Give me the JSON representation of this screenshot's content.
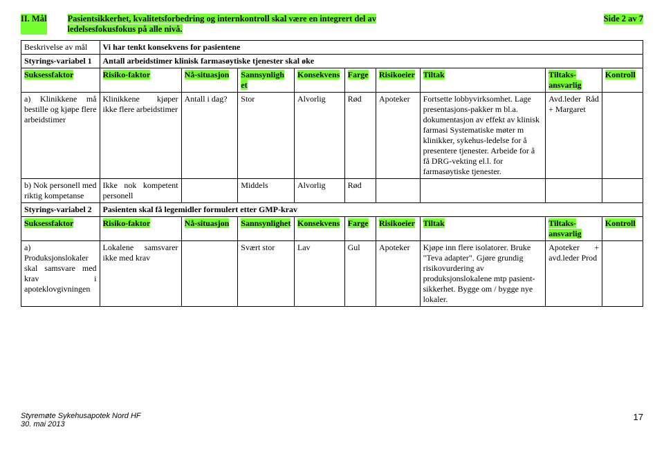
{
  "page": {
    "side": "Side 2 av 7",
    "maal_label": "II.       Mål",
    "maal_text_1": "Pasientsikkerhet, kvalitetsforbedring og internkontroll skal være en integrert del av",
    "maal_text_2": "ledelsesfokusfokus på alle nivå."
  },
  "meta": {
    "beskrivelse_h": "Beskrivelse av\nmål",
    "beskrivelse_v": "Vi har tenkt konsekvens for pasientene",
    "styr1_h": "Styrings-variabel 1",
    "styr1_v": "Antall arbeidstimer klinisk farmasøytiske tjenester skal øke",
    "styr2_h": "Styrings-variabel 2",
    "styr2_v": "Pasienten skal få legemidler formulert etter GMP-krav"
  },
  "headers": {
    "suksess": "Suksessfaktor",
    "risiko": "Risiko-faktor",
    "na": "Nå-situasjon",
    "sann1": "Sannsynligh\net",
    "sann2": "Sannsynlighet",
    "kons": "Konsekvens",
    "farge": "Farge",
    "eier": "Risikoeier",
    "tiltak": "Tiltak",
    "ansv": "Tiltaks-\nansvarlig",
    "kontroll": "Kontroll"
  },
  "r1": {
    "a": "a) Klinikkene må bestille og kjøpe flere arbeidstimer",
    "b": "Klinikkene kjøper ikke flere arbeidstimer",
    "c": "Antall i dag?",
    "d": "Stor",
    "e": "Alvorlig",
    "f": "Rød",
    "g": "Apoteker",
    "h": "Fortsette lobbyvirksomhet. Lage presentasjons-pakker m bl.a. dokumentasjon av effekt av klinisk farmasi Systematiske møter m klinikker, sykehus-ledelse for å presentere tjenester. Arbeide for å få DRG-vekting el.l. for farmasøytiske tjenester.",
    "i": "Avd.leder Råd + Margaret"
  },
  "r2": {
    "a": "b) Nok personell med riktig kompetanse",
    "b": "Ikke nok kompetent personell",
    "d": "Middels",
    "e": "Alvorlig",
    "f": "Rød"
  },
  "r3": {
    "a": "a) Produksjonslokaler skal samsvare med krav i apoteklovgivningen",
    "b": "Lokalene samsvarer ikke med krav",
    "d": "Svært stor",
    "e": "Lav",
    "f": "Gul",
    "g": "Apoteker",
    "h": "Kjøpe inn flere isolatorer. Bruke \"Teva adapter\". Gjøre grundig risikovurdering av produksjonslokalene mtp pasient-sikkerhet. Bygge om / bygge nye lokaler.",
    "i": "Apoteker + avd.leder Prod"
  },
  "footer": {
    "l1": "Styremøte Sykehusapotek Nord HF",
    "l2": "30. mai 2013",
    "r": "17"
  },
  "colors": {
    "hl": "#76ff2f"
  }
}
